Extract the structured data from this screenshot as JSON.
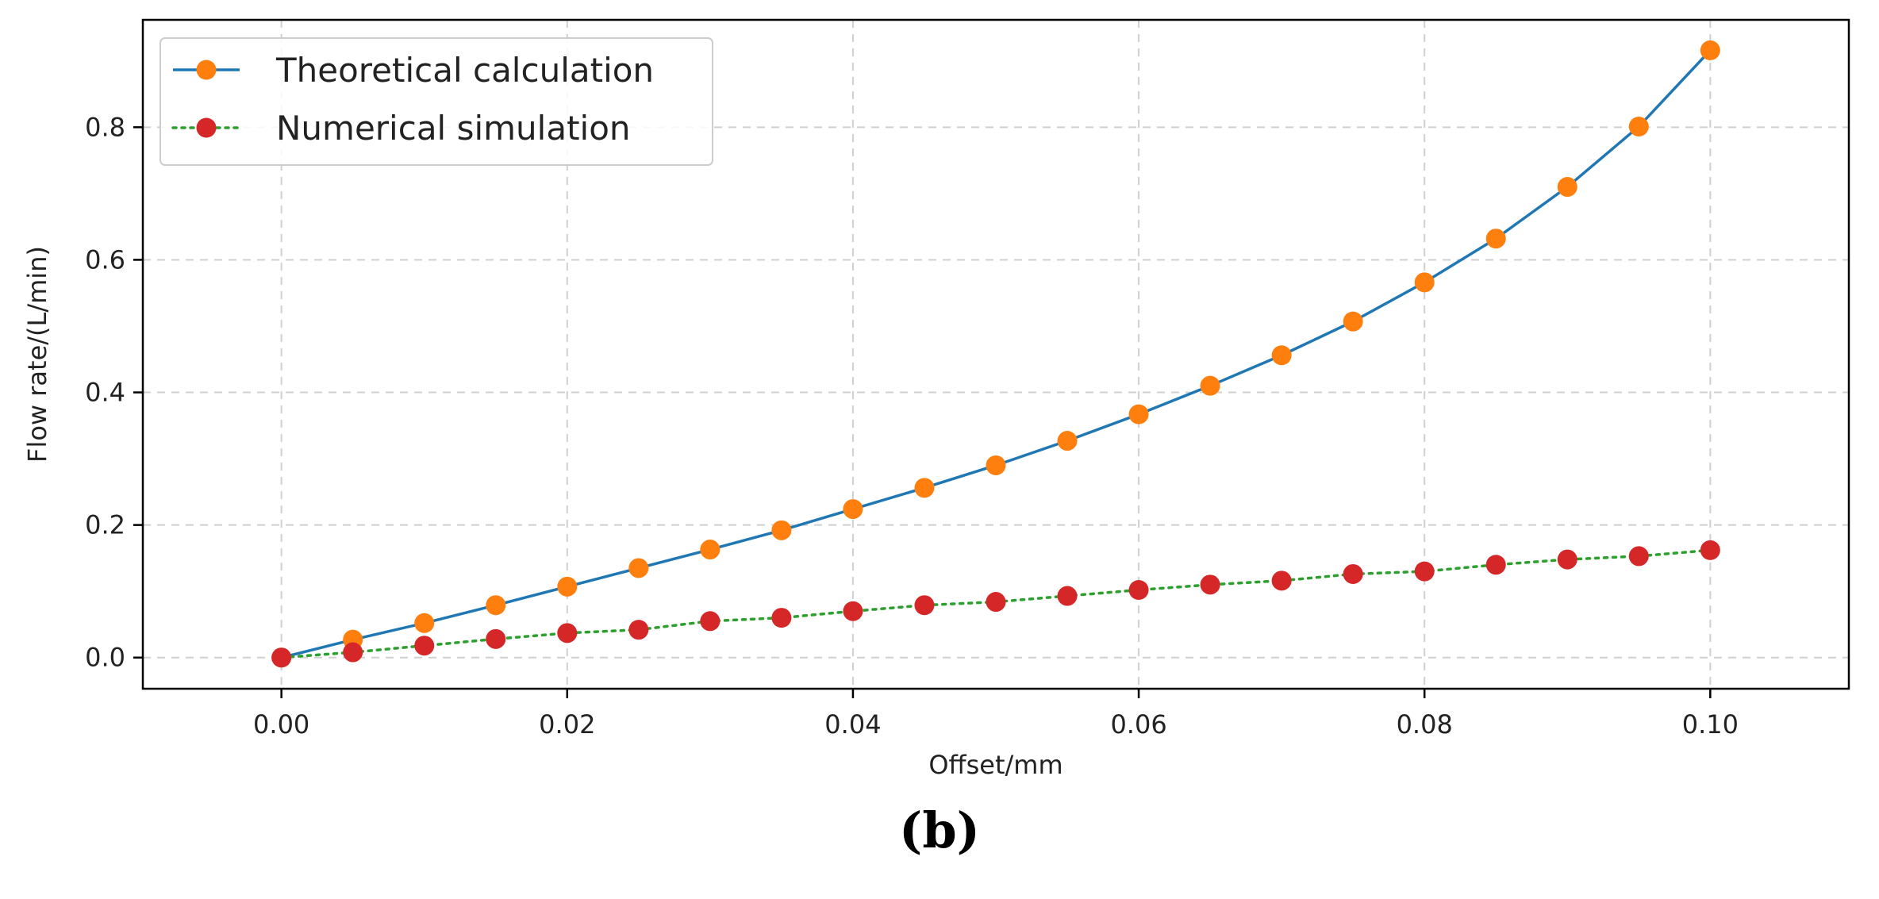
{
  "chart_data": {
    "type": "line",
    "title": "",
    "xlabel": "Offset/mm",
    "ylabel": "Flow rate/(L/min)",
    "xlim": [
      -0.0097,
      0.1097
    ],
    "ylim": [
      -0.047,
      0.962
    ],
    "xticks": [
      0.0,
      0.02,
      0.04,
      0.06,
      0.08,
      0.1
    ],
    "xtick_labels": [
      "0.00",
      "0.02",
      "0.04",
      "0.06",
      "0.08",
      "0.10"
    ],
    "yticks": [
      0.0,
      0.2,
      0.4,
      0.6,
      0.8
    ],
    "ytick_labels": [
      "0.0",
      "0.2",
      "0.4",
      "0.6",
      "0.8"
    ],
    "grid": true,
    "legend_position": "top-left",
    "x": [
      0.0,
      0.005,
      0.01,
      0.015,
      0.02,
      0.025,
      0.03,
      0.035,
      0.04,
      0.045,
      0.05,
      0.055,
      0.06,
      0.065,
      0.07,
      0.075,
      0.08,
      0.085,
      0.09,
      0.095,
      0.1
    ],
    "series": [
      {
        "name": "Theoretical calculation",
        "line_color": "#1f77b4",
        "marker_color": "#ff7f0e",
        "line_style": "solid",
        "values": [
          0.0,
          0.027,
          0.052,
          0.079,
          0.107,
          0.135,
          0.163,
          0.192,
          0.224,
          0.256,
          0.29,
          0.327,
          0.367,
          0.41,
          0.456,
          0.507,
          0.566,
          0.632,
          0.71,
          0.801,
          0.916
        ]
      },
      {
        "name": "Numerical simulation",
        "line_color": "#2ca02c",
        "marker_color": "#d62728",
        "line_style": "dotted",
        "values": [
          0.0,
          0.008,
          0.018,
          0.028,
          0.037,
          0.042,
          0.055,
          0.06,
          0.07,
          0.079,
          0.084,
          0.093,
          0.102,
          0.11,
          0.116,
          0.126,
          0.13,
          0.14,
          0.148,
          0.153,
          0.162
        ]
      }
    ]
  },
  "caption": "(b)"
}
